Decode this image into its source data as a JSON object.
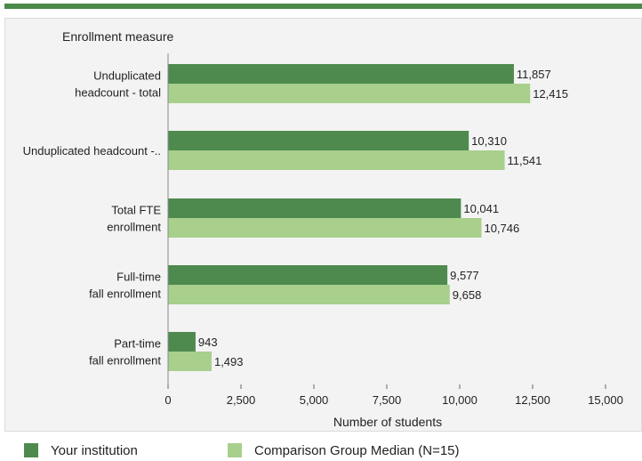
{
  "colors": {
    "series1": "#4e8a4e",
    "series2": "#a8cf8c",
    "accent": "#4a8a4a"
  },
  "chart_data": {
    "type": "bar",
    "orientation": "horizontal",
    "title": "Enrollment measure",
    "xlabel": "Number of students",
    "xlim": [
      0,
      15000
    ],
    "xticks": [
      0,
      2500,
      5000,
      7500,
      10000,
      12500,
      15000
    ],
    "xtick_labels": [
      "0",
      "2,500",
      "5,000",
      "7,500",
      "10,000",
      "12,500",
      "15,000"
    ],
    "categories": [
      [
        "Unduplicated",
        "headcount - total"
      ],
      [
        "Unduplicated headcount -.."
      ],
      [
        "Total FTE",
        "enrollment"
      ],
      [
        "Full-time",
        "fall enrollment"
      ],
      [
        "Part-time",
        "fall enrollment"
      ]
    ],
    "series": [
      {
        "name": "Your institution",
        "values": [
          11857,
          10310,
          10041,
          9577,
          943
        ],
        "labels": [
          "11,857",
          "10,310",
          "10,041",
          "9,577",
          "943"
        ]
      },
      {
        "name": "Comparison Group Median (N=15)",
        "values": [
          12415,
          11541,
          10746,
          9658,
          1493
        ],
        "labels": [
          "12,415",
          "11,541",
          "10,746",
          "9,658",
          "1,493"
        ]
      }
    ],
    "grid": false,
    "legend_position": "bottom"
  }
}
